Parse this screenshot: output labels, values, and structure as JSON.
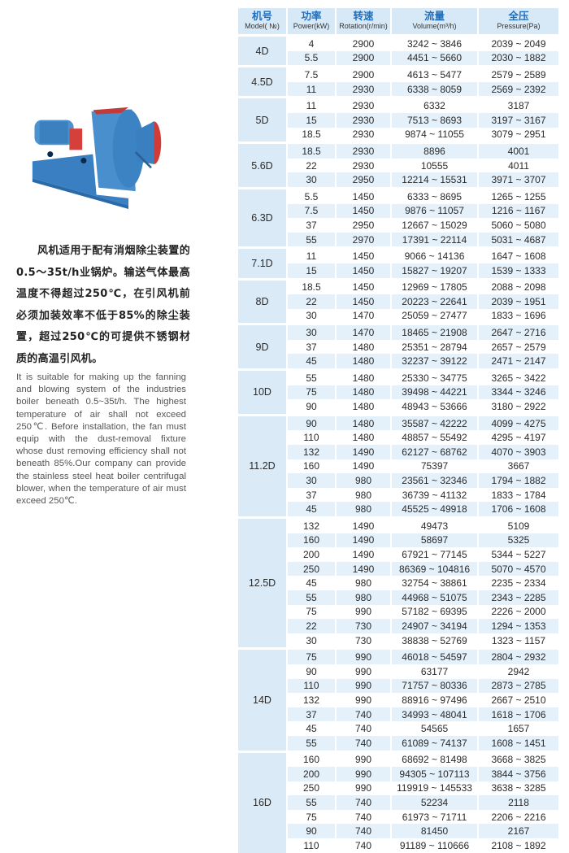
{
  "description_zh": "风机适用于配有消烟除尘装置的0.5～35t/h业锅炉。输送气体最高温度不得超过250℃，在引风机前必须加装效率不低于85%的除尘装置，超过250℃的可提供不锈钢材质的高温引风机。",
  "description_en": "It is suitable for making up the fanning and blowing system of the industries boiler beneath 0.5~35t/h. The highest temperature of air shall not exceed 250℃. Before installation, the fan must equip with the dust-removal fixture whose dust removing efficiency shall not beneath 85%.Our company can provide the stainless steel heat boiler centrifugal blower, when the temperature of air must exceed 250℃.",
  "colors": {
    "header_bg": "#d7e9f7",
    "header_text": "#1e6fbf",
    "stripe": "#e4f1fb",
    "model_bg": "#dbeaf7",
    "fan_body": "#3b82c4"
  },
  "table": {
    "headers": [
      {
        "zh": "机号",
        "en": "Model( №)"
      },
      {
        "zh": "功率",
        "en": "Power(kW)"
      },
      {
        "zh": "转速",
        "en": "Rotation(r/min)"
      },
      {
        "zh": "流量",
        "en": "Volume(m³/h)"
      },
      {
        "zh": "全压",
        "en": "Pressure(Pa)"
      }
    ],
    "groups": [
      {
        "model": "4D",
        "rows": [
          [
            "4",
            "2900",
            "3242 ~ 3846",
            "2039 ~ 2049"
          ],
          [
            "5.5",
            "2900",
            "4451 ~ 5660",
            "2030 ~ 1882"
          ]
        ]
      },
      {
        "model": "4.5D",
        "rows": [
          [
            "7.5",
            "2900",
            "4613 ~ 5477",
            "2579 ~ 2589"
          ],
          [
            "11",
            "2930",
            "6338 ~ 8059",
            "2569 ~ 2392"
          ]
        ]
      },
      {
        "model": "5D",
        "rows": [
          [
            "11",
            "2930",
            "6332",
            "3187"
          ],
          [
            "15",
            "2930",
            "7513 ~ 8693",
            "3197 ~ 3167"
          ],
          [
            "18.5",
            "2930",
            "9874 ~ 11055",
            "3079 ~ 2951"
          ]
        ]
      },
      {
        "model": "5.6D",
        "rows": [
          [
            "18.5",
            "2930",
            "8896",
            "4001"
          ],
          [
            "22",
            "2930",
            "10555",
            "4011"
          ],
          [
            "30",
            "2950",
            "12214 ~ 15531",
            "3971 ~ 3707"
          ]
        ]
      },
      {
        "model": "6.3D",
        "rows": [
          [
            "5.5",
            "1450",
            "6333 ~ 8695",
            "1265 ~ 1255"
          ],
          [
            "7.5",
            "1450",
            "9876 ~ 11057",
            "1216 ~ 1167"
          ],
          [
            "37",
            "2950",
            "12667 ~ 15029",
            "5060 ~ 5080"
          ],
          [
            "55",
            "2970",
            "17391 ~ 22114",
            "5031 ~ 4687"
          ]
        ]
      },
      {
        "model": "7.1D",
        "rows": [
          [
            "11",
            "1450",
            "9066 ~ 14136",
            "1647 ~ 1608"
          ],
          [
            "15",
            "1450",
            "15827 ~ 19207",
            "1539 ~ 1333"
          ]
        ]
      },
      {
        "model": "8D",
        "rows": [
          [
            "18.5",
            "1450",
            "12969 ~ 17805",
            "2088 ~ 2098"
          ],
          [
            "22",
            "1450",
            "20223 ~ 22641",
            "2039 ~ 1951"
          ],
          [
            "30",
            "1470",
            "25059 ~ 27477",
            "1833 ~ 1696"
          ]
        ]
      },
      {
        "model": "9D",
        "rows": [
          [
            "30",
            "1470",
            "18465 ~ 21908",
            "2647 ~ 2716"
          ],
          [
            "37",
            "1480",
            "25351 ~ 28794",
            "2657 ~ 2579"
          ],
          [
            "45",
            "1480",
            "32237 ~ 39122",
            "2471 ~ 2147"
          ]
        ]
      },
      {
        "model": "10D",
        "rows": [
          [
            "55",
            "1480",
            "25330 ~ 34775",
            "3265 ~ 3422"
          ],
          [
            "75",
            "1480",
            "39498 ~ 44221",
            "3344 ~ 3246"
          ],
          [
            "90",
            "1480",
            "48943 ~ 53666",
            "3180 ~ 2922"
          ]
        ]
      },
      {
        "model": "11.2D",
        "rows": [
          [
            "90",
            "1480",
            "35587 ~ 42222",
            "4099 ~ 4275"
          ],
          [
            "110",
            "1480",
            "48857 ~ 55492",
            "4295 ~ 4197"
          ],
          [
            "132",
            "1490",
            "62127 ~ 68762",
            "4070 ~ 3903"
          ],
          [
            "160",
            "1490",
            "75397",
            "3667"
          ],
          [
            "30",
            "980",
            "23561 ~ 32346",
            "1794 ~ 1882"
          ],
          [
            "37",
            "980",
            "36739 ~ 41132",
            "1833 ~ 1784"
          ],
          [
            "45",
            "980",
            "45525 ~ 49918",
            "1706 ~ 1608"
          ]
        ]
      },
      {
        "model": "12.5D",
        "rows": [
          [
            "132",
            "1490",
            "49473",
            "5109"
          ],
          [
            "160",
            "1490",
            "58697",
            "5325"
          ],
          [
            "200",
            "1490",
            "67921 ~ 77145",
            "5344 ~ 5227"
          ],
          [
            "250",
            "1490",
            "86369 ~ 104816",
            "5070 ~ 4570"
          ],
          [
            "45",
            "980",
            "32754 ~ 38861",
            "2235 ~ 2334"
          ],
          [
            "55",
            "980",
            "44968 ~ 51075",
            "2343 ~ 2285"
          ],
          [
            "75",
            "990",
            "57182 ~ 69395",
            "2226 ~ 2000"
          ],
          [
            "22",
            "730",
            "24907 ~ 34194",
            "1294 ~ 1353"
          ],
          [
            "30",
            "730",
            "38838 ~ 52769",
            "1323 ~ 1157"
          ]
        ]
      },
      {
        "model": "14D",
        "rows": [
          [
            "75",
            "990",
            "46018 ~ 54597",
            "2804 ~ 2932"
          ],
          [
            "90",
            "990",
            "63177",
            "2942"
          ],
          [
            "110",
            "990",
            "71757 ~ 80336",
            "2873 ~ 2785"
          ],
          [
            "132",
            "990",
            "88916 ~ 97496",
            "2667 ~ 2510"
          ],
          [
            "37",
            "740",
            "34993 ~ 48041",
            "1618 ~ 1706"
          ],
          [
            "45",
            "740",
            "54565",
            "1657"
          ],
          [
            "55",
            "740",
            "61089 ~ 74137",
            "1608 ~ 1451"
          ]
        ]
      },
      {
        "model": "16D",
        "rows": [
          [
            "160",
            "990",
            "68692 ~ 81498",
            "3668 ~ 3825"
          ],
          [
            "200",
            "990",
            "94305 ~ 107113",
            "3844 ~ 3756"
          ],
          [
            "250",
            "990",
            "119919 ~ 145533",
            "3638 ~ 3285"
          ],
          [
            "55",
            "740",
            "52234",
            "2118"
          ],
          [
            "75",
            "740",
            "61973 ~ 71711",
            "2206 ~ 2216"
          ],
          [
            "90",
            "740",
            "81450",
            "2167"
          ],
          [
            "110",
            "740",
            "91189 ~ 110666",
            "2108 ~ 1892"
          ]
        ]
      }
    ]
  }
}
